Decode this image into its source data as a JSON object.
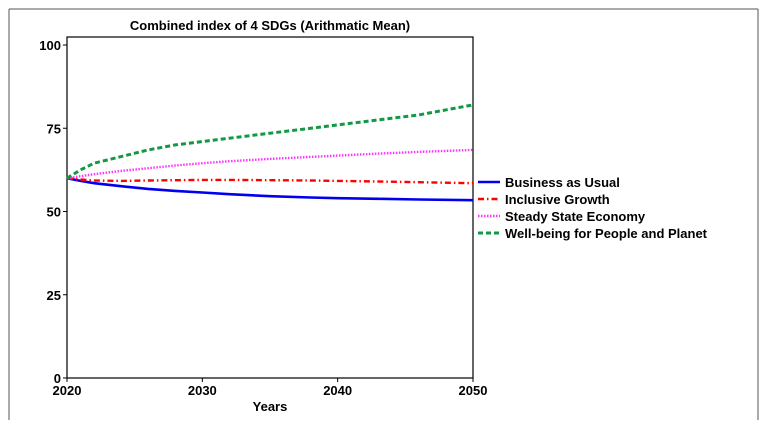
{
  "chart_data": {
    "type": "line",
    "title": "Combined index of 4 SDGs (Arithmatic Mean)",
    "xlabel": "Years",
    "ylabel": "",
    "xlim": [
      2020,
      2050
    ],
    "ylim": [
      0,
      100
    ],
    "x_ticks": [
      2020,
      2030,
      2040,
      2050
    ],
    "y_ticks": [
      0,
      25,
      50,
      75,
      100
    ],
    "legend_position": "right",
    "grid": false,
    "x": [
      2020,
      2021,
      2022,
      2024,
      2026,
      2028,
      2030,
      2032,
      2035,
      2038,
      2040,
      2043,
      2046,
      2050
    ],
    "series": [
      {
        "name": "Business as Usual",
        "color": "#0000ee",
        "style": "solid",
        "values": [
          60,
          59.2,
          58.5,
          57.6,
          56.8,
          56.2,
          55.7,
          55.2,
          54.6,
          54.2,
          54.0,
          53.8,
          53.6,
          53.4
        ]
      },
      {
        "name": "Inclusive Growth",
        "color": "#ff0000",
        "style": "dashdot",
        "values": [
          60,
          59.6,
          59.3,
          59.2,
          59.3,
          59.4,
          59.5,
          59.5,
          59.4,
          59.3,
          59.2,
          59.0,
          58.8,
          58.5
        ]
      },
      {
        "name": "Steady State Economy",
        "color": "#ff33ff",
        "style": "dotted",
        "values": [
          60,
          60.6,
          61.2,
          62.2,
          63.0,
          63.8,
          64.5,
          65.1,
          65.8,
          66.4,
          66.8,
          67.4,
          67.9,
          68.5
        ]
      },
      {
        "name": "Well-being for People and Planet",
        "color": "#119944",
        "style": "dashed",
        "values": [
          60,
          62.5,
          64.5,
          66.5,
          68.5,
          70.0,
          71.0,
          72.0,
          73.5,
          75.0,
          76.0,
          77.5,
          79.0,
          82.0
        ]
      }
    ]
  }
}
